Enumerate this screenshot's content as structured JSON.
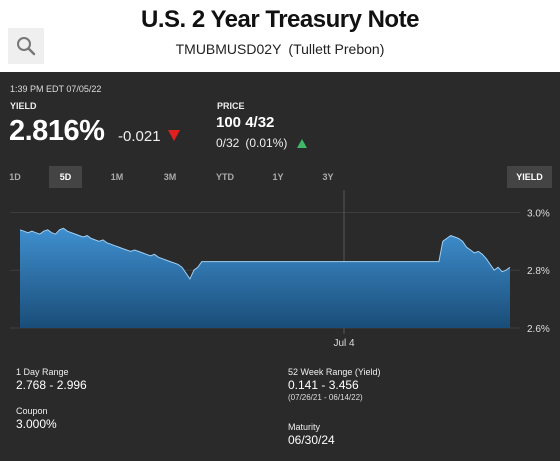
{
  "header": {
    "title": "U.S. 2 Year Treasury Note",
    "subtitle": "TMUBMUSD02Y (Tullett Prebon)"
  },
  "quote": {
    "timestamp": "1:39 PM EDT 07/05/22",
    "yield_label": "YIELD",
    "yield_value": "2.816%",
    "yield_change": "-0.021",
    "price_label": "PRICE",
    "price_value": "100 4/32",
    "price_change": "0/32 (0.01%)"
  },
  "ranges": [
    "1D",
    "5D",
    "1M",
    "3M",
    "YTD",
    "1Y",
    "3Y"
  ],
  "active_range": "5D",
  "yield_toggle": "YIELD",
  "stats": {
    "day_range_label": "1 Day Range",
    "day_range_value": "2.768 - 2.996",
    "week52_label": "52 Week Range (Yield)",
    "week52_value": "0.141 - 3.456",
    "week52_dates": "(07/26/21 - 06/14/22)",
    "coupon_label": "Coupon",
    "coupon_value": "3.000%",
    "maturity_label": "Maturity",
    "maturity_value": "06/30/24"
  },
  "colors": {
    "up": "#3fb86a",
    "down": "#e02020",
    "chart_fill_top": "#3f8fcf",
    "chart_fill_bottom": "#1a4d78"
  },
  "chart_data": {
    "type": "area",
    "x_tick_labels": [
      "Jul 4"
    ],
    "y_tick_labels": [
      "3.0%",
      "2.8%",
      "2.6%"
    ],
    "ylim": [
      2.6,
      3.05
    ],
    "series": [
      {
        "values": [
          2.94,
          2.935,
          2.93,
          2.935,
          2.93,
          2.925,
          2.935,
          2.94,
          2.93,
          2.925,
          2.94,
          2.945,
          2.935,
          2.93,
          2.925,
          2.92,
          2.915,
          2.92,
          2.91,
          2.905,
          2.9,
          2.905,
          2.895,
          2.89,
          2.885,
          2.88,
          2.875,
          2.87,
          2.865,
          2.87,
          2.865,
          2.86,
          2.855,
          2.85,
          2.855,
          2.845,
          2.84,
          2.835,
          2.83,
          2.825,
          2.82,
          2.81,
          2.79,
          2.77,
          2.8,
          2.81,
          2.83,
          2.83,
          2.83,
          2.83,
          2.83,
          2.83,
          2.83,
          2.83,
          2.83,
          2.83,
          2.83,
          2.83,
          2.83,
          2.83,
          2.83,
          2.83,
          2.83,
          2.83,
          2.83,
          2.83,
          2.83,
          2.83,
          2.83,
          2.83,
          2.83,
          2.83,
          2.83,
          2.83,
          2.83,
          2.83,
          2.83,
          2.83,
          2.83,
          2.83,
          2.83,
          2.83,
          2.83,
          2.83,
          2.83,
          2.83,
          2.83,
          2.83,
          2.83,
          2.83,
          2.83,
          2.83,
          2.83,
          2.83,
          2.83,
          2.83,
          2.83,
          2.83,
          2.83,
          2.83,
          2.83,
          2.83,
          2.83,
          2.83,
          2.83,
          2.83,
          2.83,
          2.9,
          2.91,
          2.92,
          2.915,
          2.91,
          2.9,
          2.88,
          2.87,
          2.86,
          2.865,
          2.855,
          2.84,
          2.82,
          2.8,
          2.81,
          2.795,
          2.8,
          2.81
        ]
      }
    ]
  }
}
